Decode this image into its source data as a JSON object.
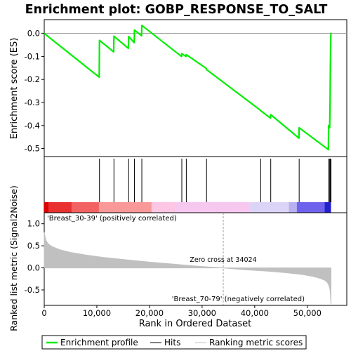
{
  "chart_data": {
    "type": "line",
    "title": "Enrichment plot: GOBP_RESPONSE_TO_SALT",
    "top_panel": {
      "ylabel": "Enrichment score (ES)",
      "ylim": [
        -0.535,
        0.06
      ],
      "yticks": [
        0.0,
        -0.1,
        -0.2,
        -0.3,
        -0.4,
        -0.5
      ],
      "ytick_labels": [
        "0.0",
        "-0.1",
        "-0.2",
        "-0.3",
        "-0.4",
        "-0.5"
      ],
      "series": [
        {
          "name": "Enrichment profile",
          "color": "#00ee00",
          "x": [
            0,
            10450,
            10500,
            13200,
            13250,
            16000,
            16050,
            17100,
            17150,
            18500,
            18550,
            26100,
            26150,
            26950,
            27000,
            30800,
            30850,
            41100,
            41150,
            43000,
            43050,
            48400,
            48450,
            54000,
            54050,
            54200,
            54250,
            54330,
            54380,
            54450,
            54500
          ],
          "y": [
            0.0,
            -0.19,
            -0.03,
            -0.08,
            -0.012,
            -0.065,
            -0.013,
            -0.04,
            0.015,
            -0.01,
            0.035,
            -0.1,
            -0.088,
            -0.1,
            -0.092,
            -0.152,
            -0.157,
            -0.334,
            -0.336,
            -0.368,
            -0.353,
            -0.455,
            -0.41,
            -0.505,
            -0.4,
            -0.41,
            -0.41,
            -0.285,
            -0.15,
            -0.02,
            0.003
          ]
        }
      ],
      "hits": [
        10500,
        13250,
        16050,
        17150,
        18550,
        26150,
        27000,
        30850,
        41150,
        43050,
        48450,
        54050,
        54250,
        54380,
        54500
      ]
    },
    "middle_panel": {
      "colorbar_stops": [
        "#dd0000",
        "#e83030",
        "#f36262",
        "#f89898",
        "#fcc6e4",
        "#f6c7ef",
        "#dcd4f6",
        "#b8b0f2",
        "#6e62ec",
        "#2020cc"
      ],
      "colorbar_breaks": [
        0,
        800,
        5200,
        10400,
        20400,
        25000,
        39000,
        46500,
        48000,
        53300,
        54500
      ]
    },
    "bottom_panel": {
      "ylabel": "Ranked list metric (Signal2Noise)",
      "xlabel": "Rank in Ordered Dataset",
      "ylim": [
        -0.85,
        1.25
      ],
      "yticks": [
        1.0,
        0.5,
        0.0,
        -0.5
      ],
      "ytick_labels": [
        "1.0",
        "0.5",
        "0.0",
        "-0.5"
      ],
      "xlim": [
        0,
        57500
      ],
      "xticks": [
        0,
        10000,
        20000,
        30000,
        40000,
        50000
      ],
      "xtick_labels": [
        "0",
        "10,000",
        "20,000",
        "30,000",
        "40,000",
        "50,000"
      ],
      "metric_x": [
        0,
        300,
        700,
        1500,
        3000,
        5000,
        8000,
        11000,
        15000,
        20000,
        25000,
        30000,
        34024,
        38000,
        42000,
        46000,
        49000,
        51000,
        52500,
        53300,
        53800,
        54100,
        54300,
        54400,
        54500
      ],
      "metric_y": [
        0.8,
        0.63,
        0.55,
        0.48,
        0.41,
        0.35,
        0.29,
        0.24,
        0.19,
        0.13,
        0.08,
        0.03,
        0.0,
        -0.04,
        -0.07,
        -0.11,
        -0.15,
        -0.19,
        -0.24,
        -0.28,
        -0.33,
        -0.4,
        -0.48,
        -0.6,
        -0.82
      ],
      "zero_cross_x": 34024,
      "zero_cross_label": "Zero cross at 34024",
      "pos_label": "'Breast_30-39' (positively correlated)",
      "neg_label": "'Breast_70-79' (negatively correlated)",
      "pos_color": "#cc0000",
      "neg_color": "#0000cc",
      "fill_color": "#c0c0c0"
    },
    "legend": {
      "position": "bottom",
      "items": [
        {
          "label": "Enrichment profile",
          "color": "#00ee00",
          "style": "thick"
        },
        {
          "label": "Hits",
          "color": "#000000",
          "style": "thin"
        },
        {
          "label": "Ranking metric scores",
          "color": "#c0c0c0",
          "style": "thin"
        }
      ]
    }
  }
}
